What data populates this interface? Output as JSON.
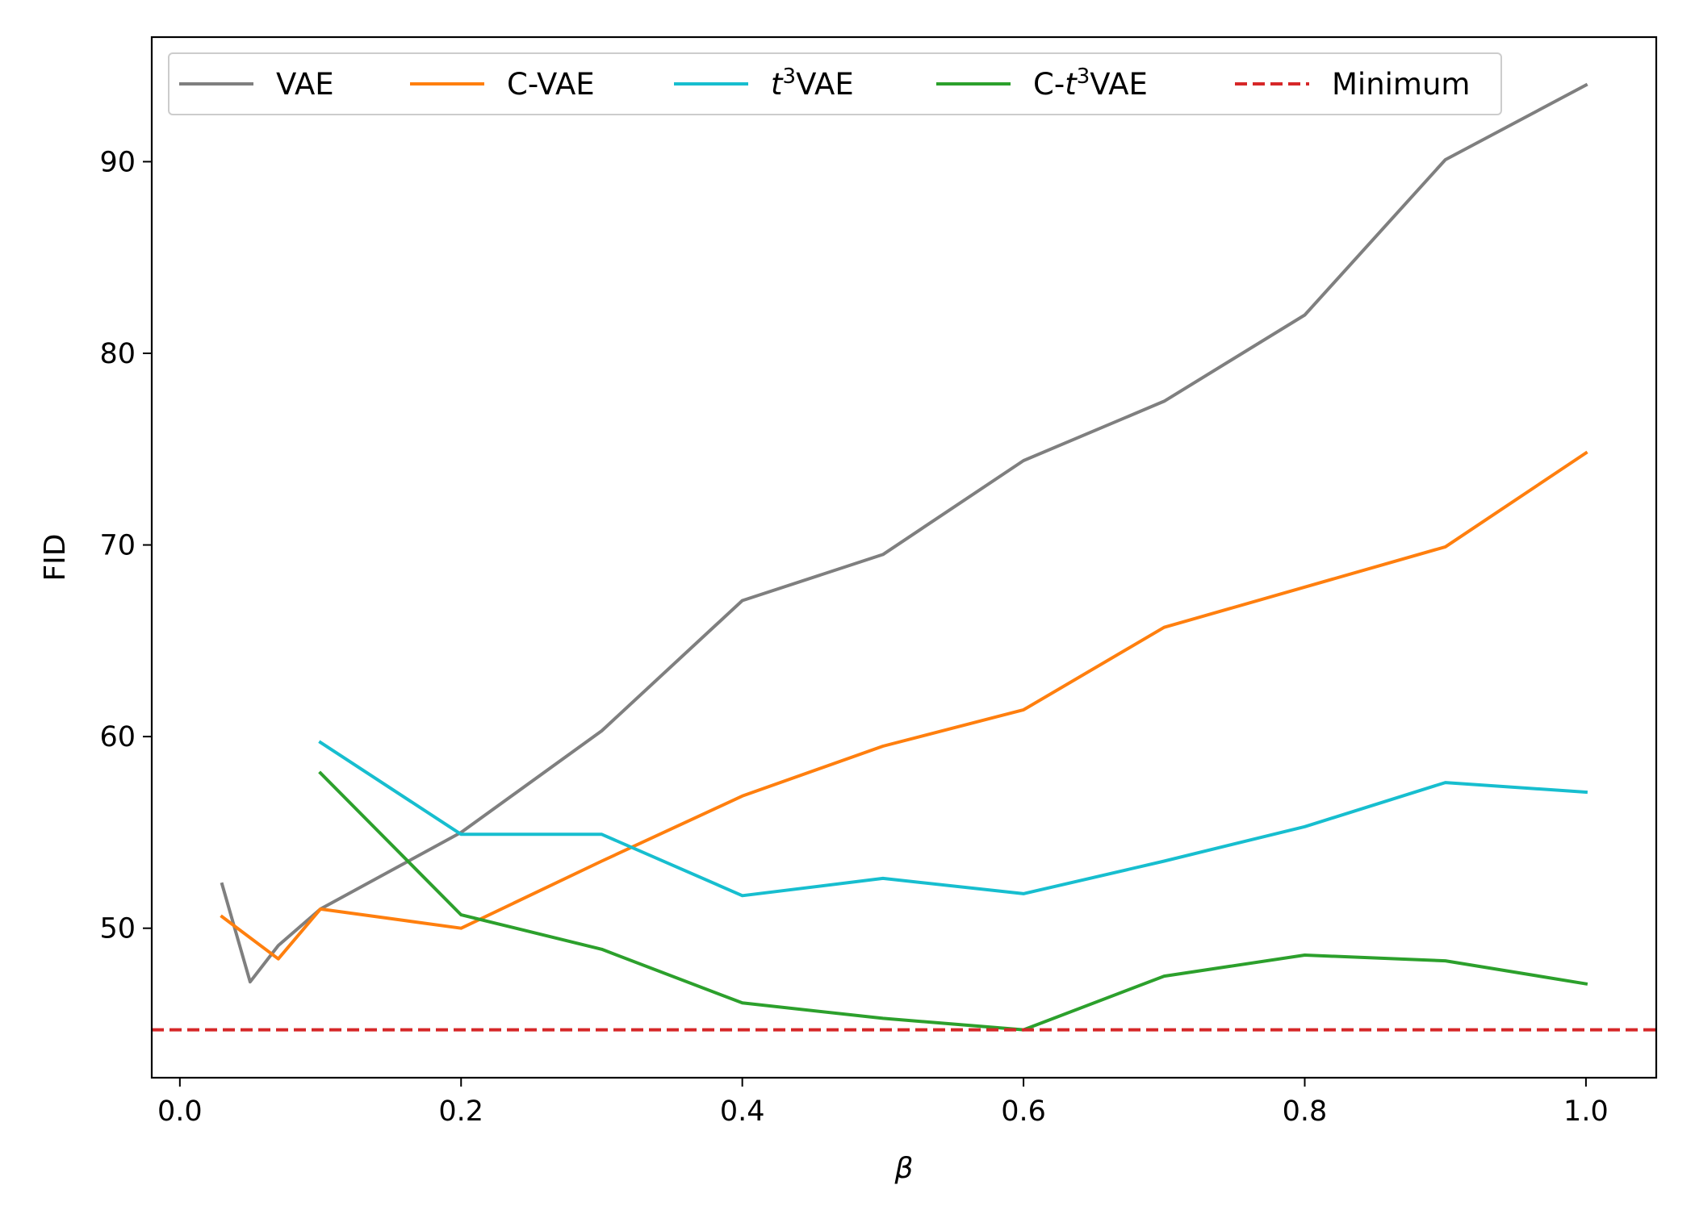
{
  "chart_data": {
    "type": "line",
    "title": "",
    "xlabel": "β",
    "ylabel": "FID",
    "xlim": [
      -0.02,
      1.05
    ],
    "ylim": [
      42.2,
      96.5
    ],
    "xticks": [
      0.0,
      0.2,
      0.4,
      0.6,
      0.8,
      1.0
    ],
    "xtick_labels": [
      "0.0",
      "0.2",
      "0.4",
      "0.6",
      "0.8",
      "1.0"
    ],
    "yticks": [
      50,
      60,
      70,
      80,
      90
    ],
    "ytick_labels": [
      "50",
      "60",
      "70",
      "80",
      "90"
    ],
    "grid": false,
    "legend_position": "top",
    "legend_columns": 5,
    "series": [
      {
        "name": "VAE",
        "legend_parts": [
          "VAE"
        ],
        "color": "#7f7f7f",
        "dash": "solid",
        "x": [
          0.03,
          0.05,
          0.07,
          0.1,
          0.2,
          0.3,
          0.4,
          0.5,
          0.6,
          0.7,
          0.8,
          0.9,
          1.0
        ],
        "y": [
          52.3,
          47.2,
          49.1,
          51.0,
          55.0,
          60.3,
          67.1,
          69.5,
          74.4,
          77.5,
          82.0,
          90.1,
          94.0
        ]
      },
      {
        "name": "C-VAE",
        "legend_parts": [
          "C-VAE"
        ],
        "color": "#ff7f0e",
        "dash": "solid",
        "x": [
          0.03,
          0.07,
          0.1,
          0.2,
          0.3,
          0.4,
          0.5,
          0.6,
          0.7,
          0.8,
          0.9,
          1.0
        ],
        "y": [
          50.6,
          48.4,
          51.0,
          50.0,
          53.5,
          56.9,
          59.5,
          61.4,
          65.7,
          67.8,
          69.9,
          74.8
        ]
      },
      {
        "name": "t³VAE",
        "legend_parts": [
          "t",
          "3",
          "VAE"
        ],
        "color": "#17becf",
        "dash": "solid",
        "x": [
          0.1,
          0.2,
          0.3,
          0.4,
          0.5,
          0.6,
          0.7,
          0.8,
          0.9,
          1.0
        ],
        "y": [
          59.7,
          54.9,
          54.9,
          51.7,
          52.6,
          51.8,
          53.5,
          55.3,
          57.6,
          57.1
        ]
      },
      {
        "name": "C-t³VAE",
        "legend_parts": [
          "C-",
          "t",
          "3",
          "VAE"
        ],
        "color": "#2ca02c",
        "dash": "solid",
        "x": [
          0.1,
          0.2,
          0.3,
          0.4,
          0.5,
          0.6,
          0.7,
          0.8,
          0.9,
          1.0
        ],
        "y": [
          58.1,
          50.7,
          48.9,
          46.1,
          45.3,
          44.7,
          47.5,
          48.6,
          48.3,
          47.1
        ]
      },
      {
        "name": "Minimum",
        "legend_parts": [
          "Minimum"
        ],
        "color": "#d62728",
        "dash": "dashed",
        "type": "hline",
        "y_value": 44.7
      }
    ]
  }
}
